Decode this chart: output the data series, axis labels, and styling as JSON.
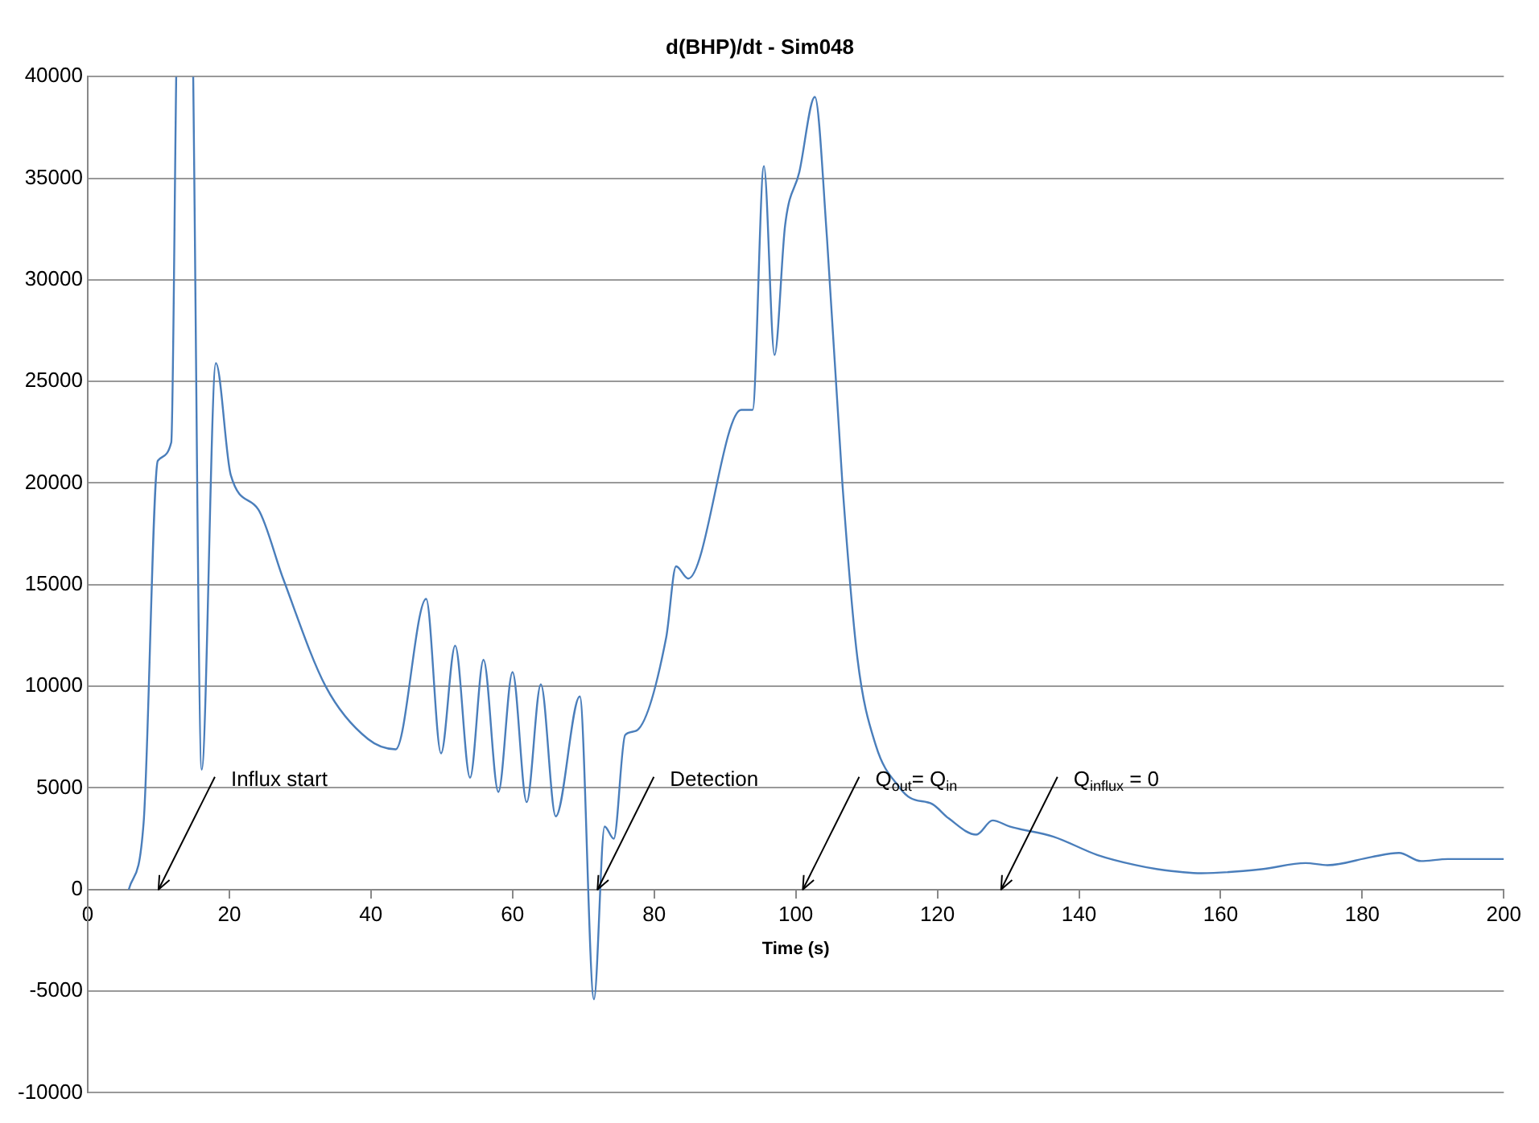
{
  "chart_data": {
    "type": "line",
    "title": "d(BHP)/dt - Sim048",
    "xlabel": "Time (s)",
    "x": [
      5.8,
      7.9,
      9.9,
      11.8,
      12.5,
      13.7,
      14.9,
      16.1,
      18.1,
      20.2,
      24.1,
      27.6,
      33.6,
      39.6,
      43.5,
      47.8,
      49.9,
      51.9,
      54.0,
      55.9,
      58.0,
      60.0,
      62.0,
      64.0,
      66.1,
      69.5,
      71.5,
      73.0,
      74.3,
      75.9,
      77.4,
      81.7,
      83.1,
      84.8,
      92.3,
      93.9,
      95.5,
      97.0,
      98.5,
      100.5,
      102.7,
      104.4,
      106.6,
      108.7,
      111.3,
      114.7,
      116.2,
      119.3,
      121.6,
      125.5,
      127.8,
      130.2,
      136.4,
      142.6,
      148.0,
      151.1,
      157.3,
      165.8,
      172.0,
      175.1,
      181.3,
      185.2,
      188.3,
      192.1,
      200
    ],
    "series": [
      {
        "color": "#4a7ebb",
        "values": [
          0,
          3300,
          21100,
          22000,
          40000,
          null,
          40000,
          5900,
          25900,
          20400,
          18700,
          15300,
          10000,
          7400,
          6900,
          14300,
          6700,
          12000,
          5500,
          11300,
          4800,
          10700,
          4300,
          10100,
          3600,
          9500,
          -5400,
          3100,
          2500,
          7600,
          7800,
          12400,
          15900,
          15300,
          23600,
          23600,
          35600,
          26300,
          32700,
          35300,
          39000,
          32100,
          19900,
          11400,
          7100,
          5000,
          4500,
          4200,
          3500,
          2700,
          3400,
          3100,
          2600,
          1700,
          1200,
          1000,
          800,
          1000,
          1300,
          1200,
          1600,
          1800,
          1400,
          1500,
          1500
        ]
      }
    ],
    "xlim": [
      0,
      200
    ],
    "xticks": [
      0,
      20,
      40,
      60,
      80,
      100,
      120,
      140,
      160,
      180,
      200
    ],
    "ylim": [
      -10000,
      40000
    ],
    "yticks": [
      -10000,
      -5000,
      0,
      5000,
      10000,
      15000,
      20000,
      25000,
      30000,
      35000,
      40000
    ],
    "grid": "y",
    "legend": false,
    "marker": "none",
    "line_style": "solid",
    "annotations": [
      "Influx start",
      {
        "text": "Detection",
        "x": 72,
        "y": 0
      },
      "Q$_{out}$= Q$_{in}$",
      "Q$_{influx}$ = 0"
    ]
  }
}
